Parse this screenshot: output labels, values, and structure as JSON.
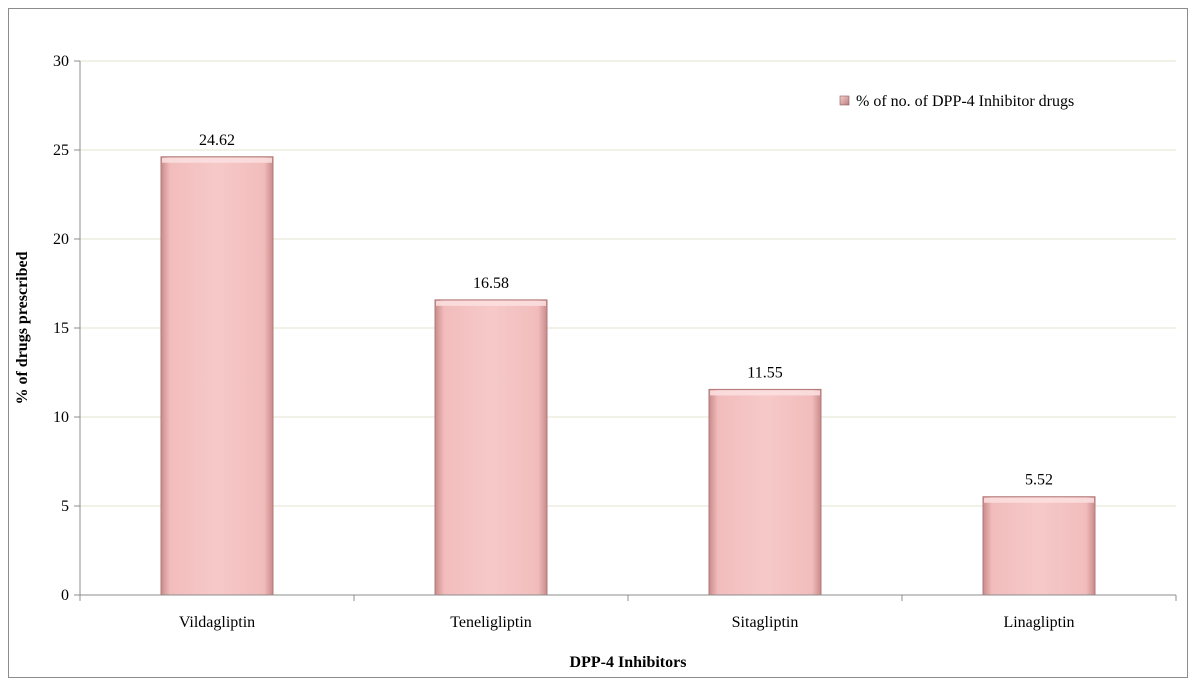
{
  "chart_data": {
    "type": "bar",
    "title": "",
    "xlabel": "DPP-4 Inhibitors",
    "ylabel": "% of drugs prescribed",
    "categories": [
      "Vildagliptin",
      "Teneligliptin",
      "Sitagliptin",
      "Linagliptin"
    ],
    "series": [
      {
        "name": "% of no. of DPP-4 Inhibitor drugs",
        "values": [
          24.62,
          16.58,
          11.55,
          5.52
        ],
        "labels": [
          "24.62",
          "16.58",
          "11.55",
          "5.52"
        ]
      }
    ],
    "ylim": [
      0,
      30
    ],
    "yticks": [
      "0",
      "5",
      "10",
      "15",
      "20",
      "25",
      "30"
    ],
    "grid": true,
    "legend_position": "top-right",
    "colors": {
      "bar": "#f4c2c2",
      "bar_edge": "#b07878",
      "grid": "#e3e3cf",
      "axis": "#8c8c8c"
    }
  }
}
